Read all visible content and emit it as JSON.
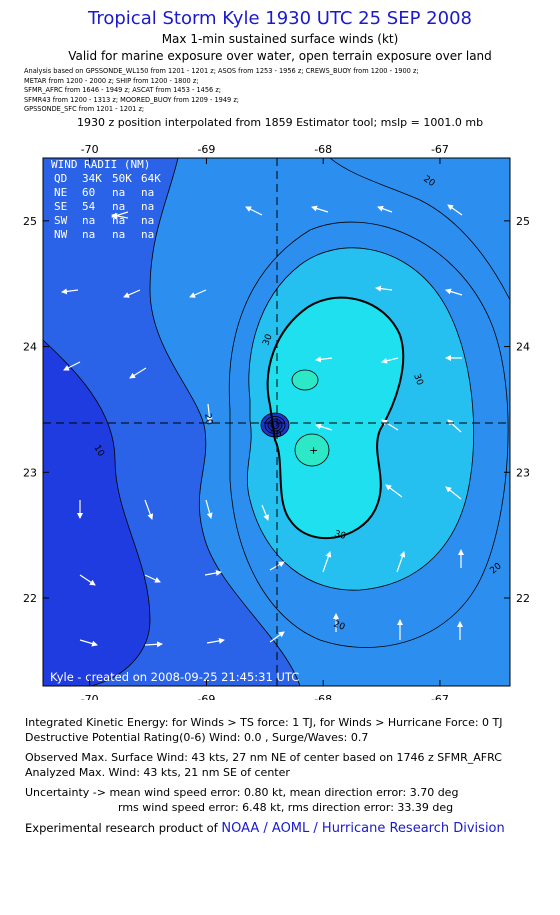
{
  "title": "Tropical Storm Kyle 1930 UTC 25 SEP 2008",
  "subtitle1": "Max 1-min sustained surface winds (kt)",
  "subtitle2": "Valid for marine exposure over water, open terrain exposure over land",
  "sources": [
    "Analysis based on  GPSSONDE_WL150 from 1201 - 1201 z;  ASOS from 1253 - 1956 z;  CREWS_BUOY from 1200 - 1900 z;",
    "METAR from 1200 - 2000 z;  SHIP from 1200 - 1800 z;",
    "SFMR_AFRC from 1646 - 1949 z;  ASCAT from 1453 - 1456 z;",
    "SFMR43 from 1200 - 1313 z;  MOORED_BUOY from 1209 - 1949 z;",
    "GPSSONDE_SFC from 1201 - 1201 z;"
  ],
  "interp_note": "1930 z position interpolated from 1859 Estimator tool; mslp = 1001.0 mb",
  "map": {
    "x_ticks": [
      "-70",
      "-69",
      "-68",
      "-67"
    ],
    "y_ticks": [
      "25",
      "24",
      "23",
      "22"
    ],
    "x_range": [
      -70.4,
      -66.4
    ],
    "y_range": [
      21.3,
      25.5
    ],
    "center": {
      "lon": -68.3,
      "lat": 23.3
    },
    "contour_labels": [
      "10",
      "20",
      "20",
      "20",
      "20",
      "30",
      "30",
      "30",
      "30",
      "20",
      "20"
    ],
    "wind_radii": {
      "title": "WIND RADII (NM)",
      "header": [
        "QD",
        "34K",
        "50K",
        "64K"
      ],
      "rows": [
        [
          "NE",
          "60",
          "na",
          "na"
        ],
        [
          "SE",
          "54",
          "na",
          "na"
        ],
        [
          "SW",
          "na",
          "na",
          "na"
        ],
        [
          "NW",
          "na",
          "na",
          "na"
        ]
      ]
    },
    "created": "Kyle - created on 2008-09-25 21:45:31 UTC",
    "colors": {
      "c10": "#1f3ce0",
      "c20": "#2a62e8",
      "c30": "#2c8ff0",
      "c40": "#25bff0",
      "c50": "#1ee0ee",
      "c60": "#2ce8c6"
    }
  },
  "footer": {
    "ike": "Integrated Kinetic Energy:  for Winds > TS force: 1 TJ,  for Winds > Hurricane Force: 0 TJ",
    "dpr": "Destructive Potential Rating(0-6)   Wind: 0.0 , Surge/Waves: 0.7",
    "obs": "Observed Max. Surface Wind: 43 kts, 27 nm NE of center based on 1746 z SFMR_AFRC",
    "analyzed": "Analyzed Max. Wind: 43 kts, 21 nm SE of center",
    "unc1": "Uncertainty -> mean wind speed error: 0.80 kt,   mean direction error: 3.70 deg",
    "unc2": "rms wind speed error: 6.48 kt,   rms direction error: 33.39 deg",
    "credit_prefix": "Experimental research product of ",
    "credit_link": "NOAA / AOML / Hurricane Research Division"
  }
}
